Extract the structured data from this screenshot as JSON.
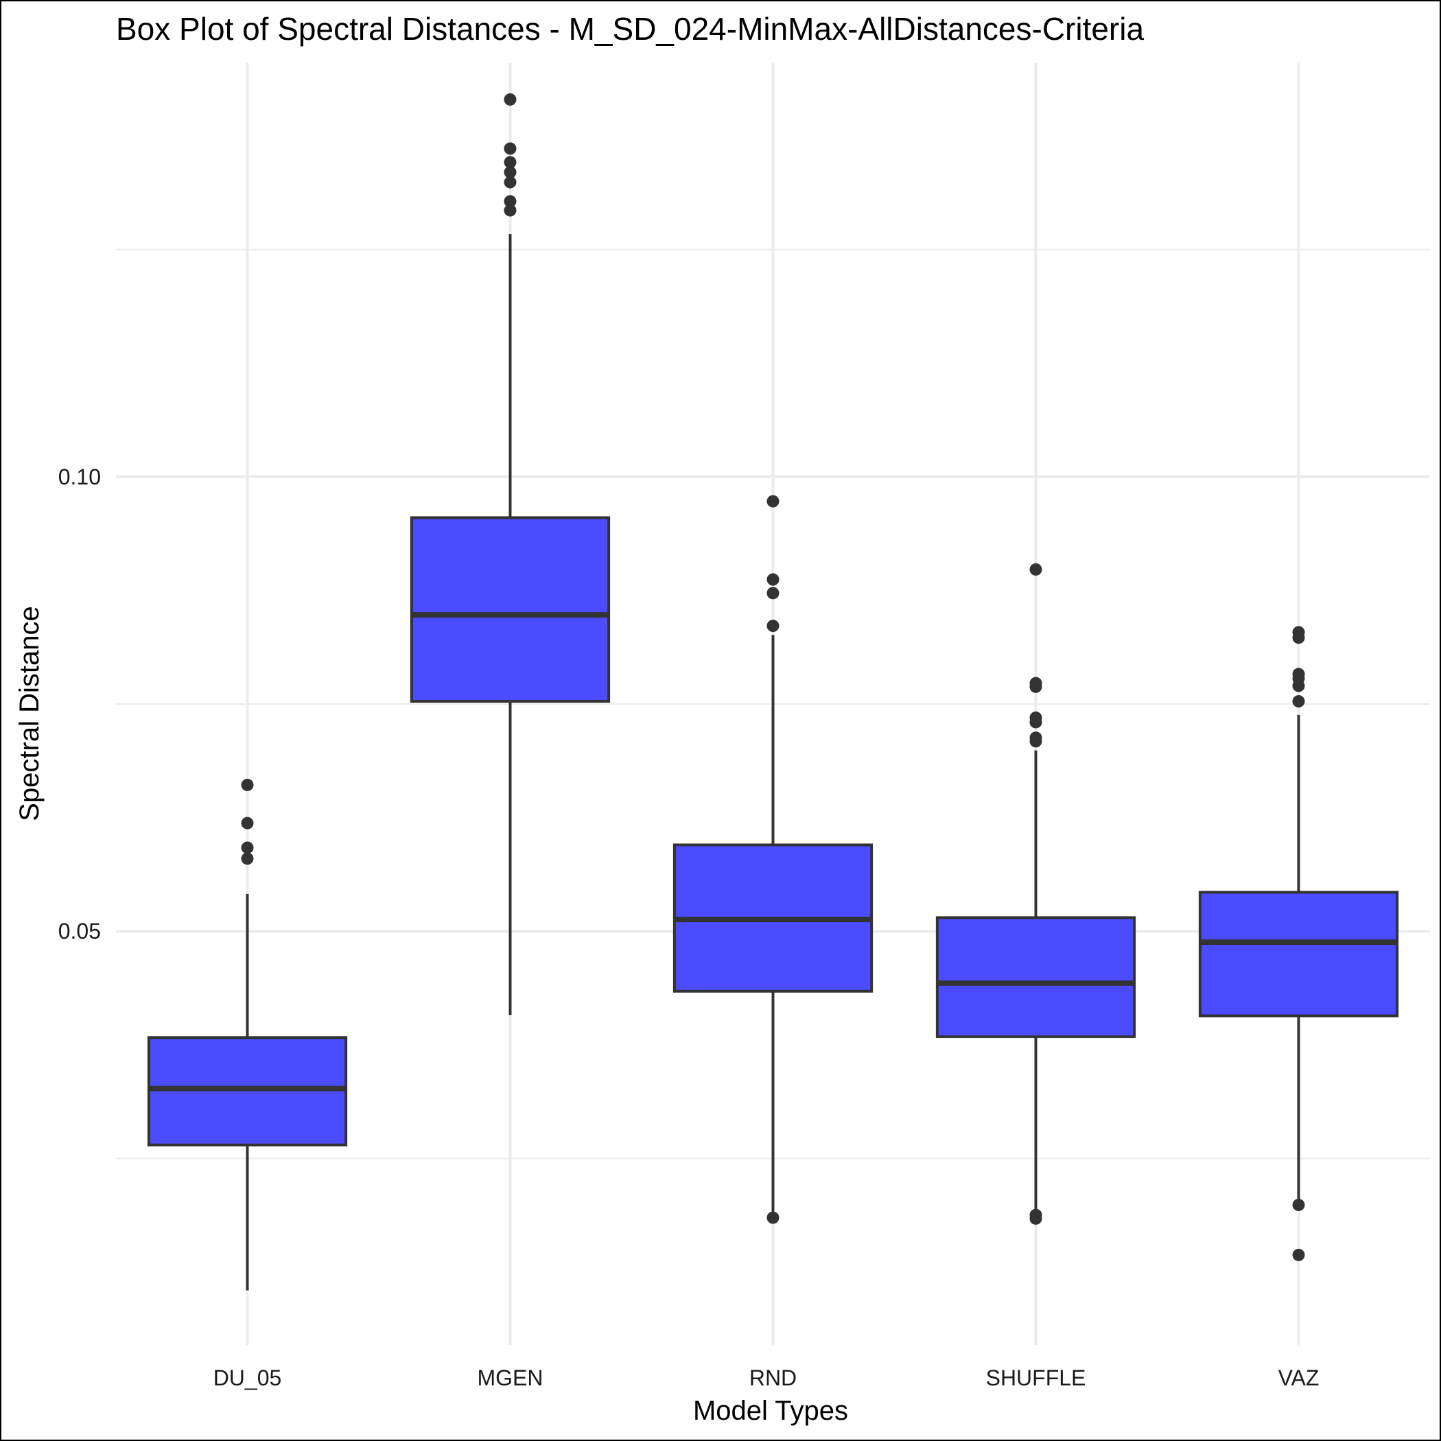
{
  "chart_data": {
    "type": "box",
    "title": "Box Plot of Spectral Distances -  M_SD_024-MinMax-AllDistances-Criteria",
    "xlabel": "Model Types",
    "ylabel": "Spectral Distance",
    "ylim": [
      0.0045,
      0.1455
    ],
    "y_ticks": [
      {
        "value": 0.1,
        "label": "0.10"
      },
      {
        "value": 0.05,
        "label": "0.05"
      }
    ],
    "y_minor_gridlines": [
      0.025,
      0.075,
      0.125
    ],
    "grid": true,
    "box_fill_color": "#4b4bff",
    "outline_color": "#333333",
    "grid_color": "#ebebeb",
    "categories": [
      "DU_05",
      "MGEN",
      "RND",
      "SHUFFLE",
      "VAZ"
    ],
    "boxes": [
      {
        "category": "DU_05",
        "whisker_low": 0.0105,
        "q1": 0.0265,
        "median": 0.0327,
        "q3": 0.0383,
        "whisker_high": 0.0541,
        "outliers": [
          0.0661,
          0.0619,
          0.0592,
          0.058
        ]
      },
      {
        "category": "MGEN",
        "whisker_low": 0.0408,
        "q1": 0.0753,
        "median": 0.0848,
        "q3": 0.0955,
        "whisker_high": 0.1267,
        "outliers": [
          0.1415,
          0.1361,
          0.1346,
          0.1335,
          0.1324,
          0.1303,
          0.1293
        ]
      },
      {
        "category": "RND",
        "whisker_low": 0.0185,
        "q1": 0.0434,
        "median": 0.0513,
        "q3": 0.0595,
        "whisker_high": 0.0826,
        "outliers": [
          0.0973,
          0.0887,
          0.0872,
          0.0836,
          0.0185
        ]
      },
      {
        "category": "SHUFFLE",
        "whisker_low": 0.0186,
        "q1": 0.0384,
        "median": 0.0443,
        "q3": 0.0515,
        "whisker_high": 0.0699,
        "outliers": [
          0.0898,
          0.0773,
          0.0769,
          0.0735,
          0.073,
          0.0713,
          0.0709,
          0.0188,
          0.0184
        ]
      },
      {
        "category": "VAZ",
        "whisker_low": 0.0199,
        "q1": 0.0407,
        "median": 0.0488,
        "q3": 0.0543,
        "whisker_high": 0.0738,
        "outliers": [
          0.0829,
          0.0823,
          0.0783,
          0.0778,
          0.077,
          0.0753,
          0.0199,
          0.0144
        ]
      }
    ]
  }
}
